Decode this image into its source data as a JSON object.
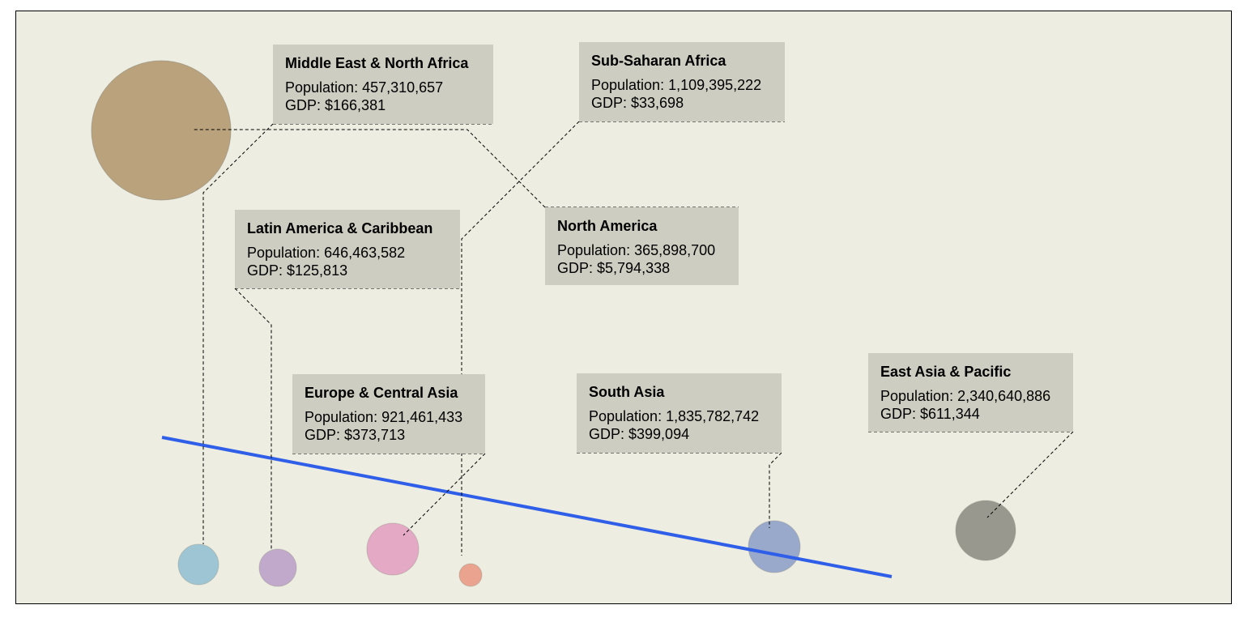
{
  "chart_data": {
    "type": "scatter",
    "title": "",
    "xlabel": "",
    "ylabel": "",
    "labels": {
      "population": "Population:",
      "gdp": "GDP:"
    },
    "bubble_style": {
      "opacity": 0.85,
      "outline": "#8a8a7a"
    },
    "trend_line": {
      "color": "#2f5fe8",
      "present": true
    },
    "points": [
      {
        "name": "Middle East & North Africa",
        "population": "457,310,657",
        "gdp": "$166,381",
        "color": "#b8a07a"
      },
      {
        "name": "Sub-Saharan Africa",
        "population": "1,109,395,222",
        "gdp": "$33,698",
        "color": "#e8957f"
      },
      {
        "name": "Latin America & Caribbean",
        "population": "646,463,582",
        "gdp": "$125,813",
        "color": "#b89cc8"
      },
      {
        "name": "North America",
        "population": "365,898,700",
        "gdp": "$5,794,338",
        "color": "#b8a07a"
      },
      {
        "name": "Europe & Central Asia",
        "population": "921,461,433",
        "gdp": "$373,713",
        "color": "#e09cc0"
      },
      {
        "name": "South Asia",
        "population": "1,835,782,742",
        "gdp": "$399,094",
        "color": "#8a9cc8"
      },
      {
        "name": "East Asia & Pacific",
        "population": "2,340,640,886",
        "gdp": "$611,344",
        "color": "#8a8880"
      },
      {
        "name": "",
        "population": "",
        "gdp": "",
        "color": "#8fbdd0"
      }
    ]
  }
}
